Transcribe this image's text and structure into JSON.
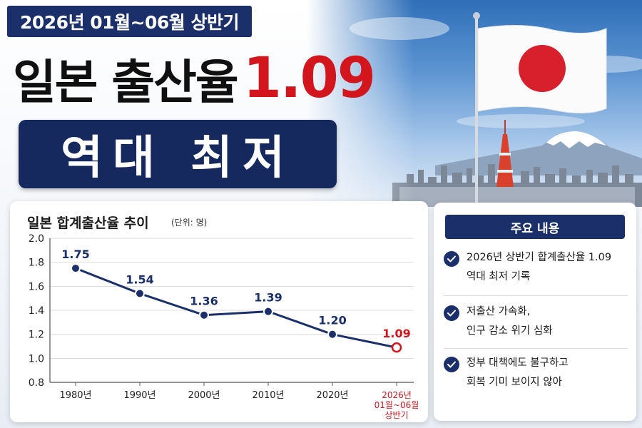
{
  "header": {
    "period": "2026년 01월~06월 상반기",
    "headline_text": "일본 출산율",
    "headline_value": "1.09",
    "subheadline": "역대 최저"
  },
  "chart": {
    "title": "일본 합계출산율 추이",
    "unit": "(단위: 명)"
  },
  "chart_data": {
    "type": "line",
    "categories": [
      "1980년",
      "1990년",
      "2000년",
      "2010년",
      "2020년",
      "2026년\n01월~06월\n상반기"
    ],
    "values": [
      1.75,
      1.54,
      1.36,
      1.39,
      1.2,
      1.09
    ],
    "value_labels": [
      "1.75",
      "1.54",
      "1.36",
      "1.39",
      "1.20",
      "1.09"
    ],
    "highlight_index": 5,
    "ylim": [
      0.8,
      2.0
    ],
    "yticks": [
      "2.0",
      "1.8",
      "1.6",
      "1.4",
      "1.2",
      "1.0",
      "0.8"
    ],
    "grid": true,
    "colors": {
      "line": "#1b2f6b",
      "highlight": "#d3161d",
      "grid": "#dddddd"
    }
  },
  "key_points": {
    "title": "주요 내용",
    "items": [
      {
        "lines": [
          "2026년 상반기 합계출산율 1.09",
          "역대 최저 기록"
        ]
      },
      {
        "lines": [
          "저출산 가속화,",
          "인구 감소 위기 심화"
        ]
      },
      {
        "lines": [
          "정부 대책에도 불구하고",
          "회복 기미 보이지 않아"
        ]
      }
    ]
  },
  "colors": {
    "navy": "#1b2f6b",
    "accent_red": "#d3161d"
  },
  "icons": [
    "check-circle-icon",
    "japan-flag-icon",
    "tokyo-tower-icon",
    "mount-fuji-icon"
  ]
}
